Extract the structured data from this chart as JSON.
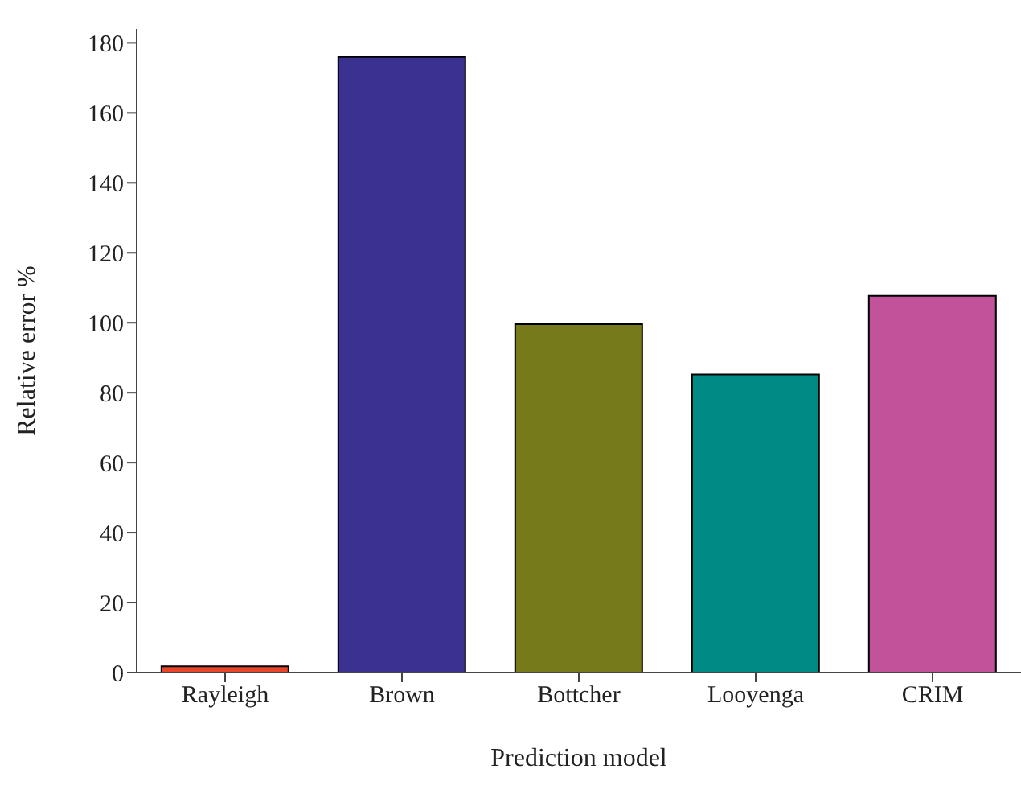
{
  "chart_data": {
    "type": "bar",
    "xlabel": "Prediction model",
    "ylabel": "Relative error %",
    "categories": [
      "Rayleigh",
      "Brown",
      "Bottcher",
      "Looyenga",
      "CRIM"
    ],
    "values": [
      1.8,
      176,
      99.6,
      85.2,
      107.7
    ],
    "colors": [
      "#e8452a",
      "#3b3190",
      "#767a1a",
      "#008a86",
      "#c2529a"
    ],
    "ylim": [
      0,
      184
    ],
    "yticks": [
      0,
      20,
      40,
      60,
      80,
      100,
      120,
      140,
      160,
      180
    ],
    "grid": false
  }
}
